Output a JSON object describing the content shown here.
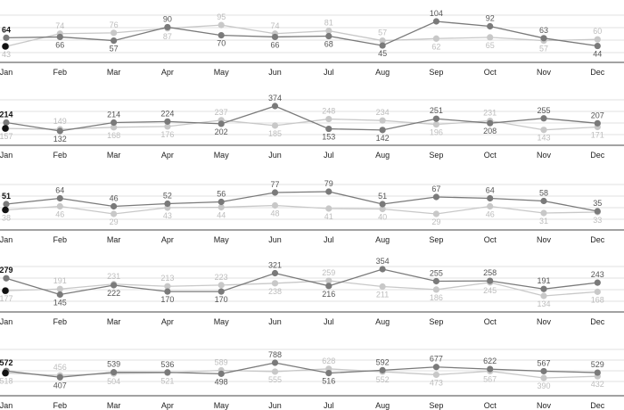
{
  "chart_data": {
    "type": "line",
    "categories": [
      "Jan",
      "Feb",
      "Mar",
      "Apr",
      "May",
      "Jun",
      "Jul",
      "Aug",
      "Sep",
      "Oct",
      "Nov",
      "Dec"
    ],
    "grid": true,
    "legend": "none",
    "colors": {
      "dark": "#7a7a7a",
      "light": "#c8c8c8",
      "marker_start": "#111111",
      "grid": "#e0e0e0",
      "axis": "#444444"
    },
    "panels": [
      {
        "series": [
          {
            "values": [
              64,
              66,
              57,
              90,
              70,
              66,
              68,
              45,
              104,
              92,
              63,
              44
            ]
          },
          {
            "values": [
              43,
              74,
              76,
              87,
              95,
              74,
              81,
              57,
              62,
              65,
              57,
              60
            ]
          }
        ]
      },
      {
        "series": [
          {
            "values": [
              214,
              132,
              214,
              224,
              202,
              374,
              153,
              142,
              251,
              208,
              255,
              207
            ]
          },
          {
            "values": [
              157,
              149,
              168,
              176,
              237,
              185,
              248,
              234,
              196,
              231,
              143,
              171
            ]
          }
        ]
      },
      {
        "series": [
          {
            "values": [
              51,
              64,
              46,
              52,
              56,
              77,
              79,
              51,
              67,
              64,
              58,
              35
            ]
          },
          {
            "values": [
              38,
              46,
              29,
              43,
              44,
              48,
              41,
              40,
              29,
              46,
              31,
              33
            ]
          }
        ]
      },
      {
        "series": [
          {
            "values": [
              279,
              145,
              222,
              170,
              170,
              321,
              216,
              354,
              255,
              258,
              191,
              243
            ]
          },
          {
            "values": [
              177,
              191,
              231,
              213,
              223,
              238,
              259,
              211,
              186,
              245,
              134,
              168
            ]
          }
        ]
      },
      {
        "series": [
          {
            "values": [
              572,
              407,
              539,
              536,
              498,
              788,
              516,
              592,
              677,
              622,
              567,
              529
            ]
          },
          {
            "values": [
              518,
              456,
              504,
              521,
              589,
              555,
              628,
              552,
              473,
              567,
              390,
              432
            ]
          }
        ]
      }
    ]
  }
}
